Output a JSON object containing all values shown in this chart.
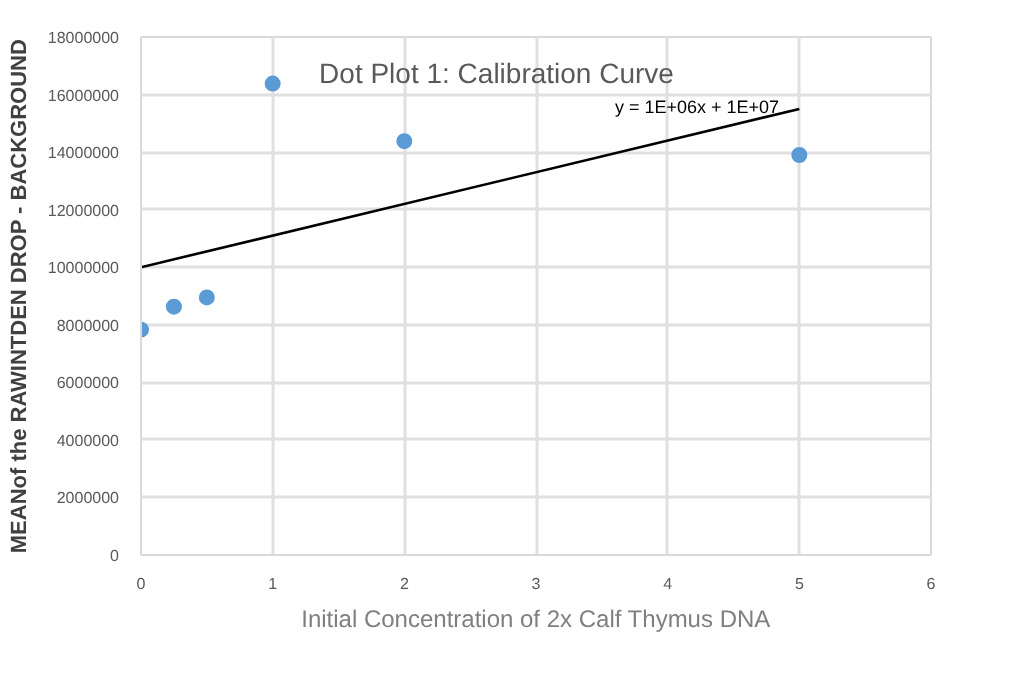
{
  "chart_data": {
    "type": "scatter",
    "title": "Dot Plot 1: Calibration Curve",
    "xlabel": "Initial Concentration of 2x Calf Thymus DNA",
    "ylabel": "MEANof the RAWINTDEN DROP - BACKGROUND",
    "series": [
      {
        "color": "#5b9bd5",
        "marker": "circle",
        "x": [
          0,
          0.25,
          0.5,
          1,
          2,
          5
        ],
        "values": [
          7830000,
          8630000,
          8950000,
          16380000,
          14380000,
          13900000
        ]
      },
      {
        "type": "line",
        "marker": "none",
        "color": "#000000",
        "x": [
          0,
          5
        ],
        "values": [
          10000000,
          15500000
        ]
      }
    ],
    "annotations": [
      "y = 1E+06x + 1E+07"
    ],
    "xlim": [
      0,
      6
    ],
    "xticks": [
      0,
      1,
      2,
      3,
      4,
      5,
      6
    ],
    "ylim": [
      0,
      18000000
    ],
    "yticks": [
      0,
      2000000,
      4000000,
      6000000,
      8000000,
      10000000,
      12000000,
      14000000,
      16000000,
      18000000
    ],
    "grid": true
  }
}
